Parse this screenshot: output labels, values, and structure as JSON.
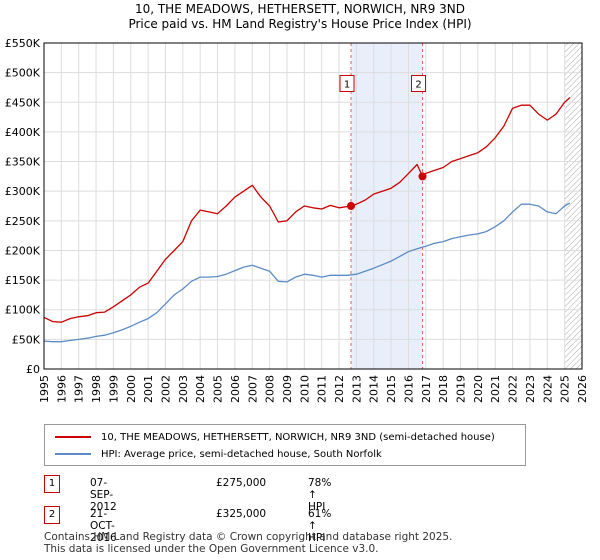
{
  "title_line1": "10, THE MEADOWS, HETHERSETT, NORWICH, NR9 3ND",
  "title_line2": "Price paid vs. HM Land Registry's House Price Index (HPI)",
  "chart_data": {
    "type": "line",
    "title": "Price paid vs. HM Land Registry's House Price Index (HPI)",
    "xlim": [
      1995,
      2026
    ],
    "ylim": [
      0,
      550000
    ],
    "y_ticks": [
      0,
      50000,
      100000,
      150000,
      200000,
      250000,
      300000,
      350000,
      400000,
      450000,
      500000,
      550000
    ],
    "y_tick_labels": [
      "£0",
      "£50K",
      "£100K",
      "£150K",
      "£200K",
      "£250K",
      "£300K",
      "£350K",
      "£400K",
      "£450K",
      "£500K",
      "£550K"
    ],
    "x_ticks": [
      1995,
      1996,
      1997,
      1998,
      1999,
      2000,
      2001,
      2002,
      2003,
      2004,
      2005,
      2006,
      2007,
      2008,
      2009,
      2010,
      2011,
      2012,
      2013,
      2014,
      2015,
      2016,
      2017,
      2018,
      2019,
      2020,
      2021,
      2022,
      2023,
      2024,
      2025,
      2026
    ],
    "x_tick_labels": [
      "1995",
      "1996",
      "1997",
      "1998",
      "1999",
      "2000",
      "2001",
      "2002",
      "2003",
      "2004",
      "2005",
      "2006",
      "2007",
      "2008",
      "2009",
      "2010",
      "2011",
      "2012",
      "2013",
      "2014",
      "2015",
      "2016",
      "2017",
      "2018",
      "2019",
      "2020",
      "2021",
      "2022",
      "2023",
      "2024",
      "2025",
      "2026"
    ],
    "grid": true,
    "shaded_period": [
      2012.69,
      2016.81
    ],
    "forecast_hatch_from": 2025.0,
    "series": [
      {
        "name": "10, THE MEADOWS, HETHERSETT, NORWICH, NR9 3ND (semi-detached house)",
        "color": "#cc0000",
        "x": [
          1995.0,
          1995.5,
          1996.0,
          1996.5,
          1997.0,
          1997.5,
          1998.0,
          1998.5,
          1999.0,
          1999.5,
          2000.0,
          2000.5,
          2001.0,
          2001.5,
          2002.0,
          2002.5,
          2003.0,
          2003.5,
          2004.0,
          2004.5,
          2005.0,
          2005.5,
          2006.0,
          2006.5,
          2007.0,
          2007.5,
          2008.0,
          2008.5,
          2009.0,
          2009.5,
          2010.0,
          2010.5,
          2011.0,
          2011.5,
          2012.0,
          2012.69,
          2013.0,
          2013.5,
          2014.0,
          2014.5,
          2015.0,
          2015.5,
          2016.0,
          2016.5,
          2016.81,
          2017.0,
          2017.5,
          2018.0,
          2018.5,
          2019.0,
          2019.5,
          2020.0,
          2020.5,
          2021.0,
          2021.5,
          2022.0,
          2022.5,
          2023.0,
          2023.5,
          2024.0,
          2024.5,
          2025.0,
          2025.3
        ],
        "values": [
          87000,
          80000,
          79000,
          85000,
          88000,
          90000,
          95000,
          96000,
          105000,
          115000,
          125000,
          138000,
          145000,
          165000,
          185000,
          200000,
          215000,
          250000,
          268000,
          265000,
          262000,
          275000,
          290000,
          300000,
          310000,
          290000,
          275000,
          248000,
          250000,
          265000,
          275000,
          272000,
          270000,
          276000,
          272000,
          275000,
          278000,
          285000,
          295000,
          300000,
          305000,
          315000,
          330000,
          345000,
          325000,
          330000,
          335000,
          340000,
          350000,
          355000,
          360000,
          365000,
          375000,
          390000,
          410000,
          440000,
          445000,
          445000,
          430000,
          420000,
          430000,
          450000,
          458000
        ]
      },
      {
        "name": "HPI: Average price, semi-detached house, South Norfolk",
        "color": "#5b8cc7",
        "x": [
          1995.0,
          1995.5,
          1996.0,
          1996.5,
          1997.0,
          1997.5,
          1998.0,
          1998.5,
          1999.0,
          1999.5,
          2000.0,
          2000.5,
          2001.0,
          2001.5,
          2002.0,
          2002.5,
          2003.0,
          2003.5,
          2004.0,
          2004.5,
          2005.0,
          2005.5,
          2006.0,
          2006.5,
          2007.0,
          2007.5,
          2008.0,
          2008.5,
          2009.0,
          2009.5,
          2010.0,
          2010.5,
          2011.0,
          2011.5,
          2012.0,
          2012.5,
          2013.0,
          2013.5,
          2014.0,
          2014.5,
          2015.0,
          2015.5,
          2016.0,
          2016.5,
          2017.0,
          2017.5,
          2018.0,
          2018.5,
          2019.0,
          2019.5,
          2020.0,
          2020.5,
          2021.0,
          2021.5,
          2022.0,
          2022.5,
          2023.0,
          2023.5,
          2024.0,
          2024.5,
          2025.0,
          2025.3
        ],
        "values": [
          47000,
          46000,
          46000,
          48000,
          50000,
          52000,
          55000,
          57000,
          61000,
          66000,
          72000,
          79000,
          85000,
          95000,
          110000,
          125000,
          135000,
          148000,
          155000,
          155000,
          156000,
          160000,
          166000,
          172000,
          175000,
          170000,
          165000,
          148000,
          147000,
          155000,
          160000,
          158000,
          155000,
          158000,
          158000,
          158000,
          160000,
          165000,
          170000,
          176000,
          182000,
          190000,
          198000,
          203000,
          207000,
          212000,
          215000,
          220000,
          223000,
          226000,
          228000,
          232000,
          240000,
          250000,
          265000,
          278000,
          278000,
          275000,
          265000,
          262000,
          275000,
          280000
        ]
      }
    ],
    "sales": [
      {
        "id": "1",
        "x": 2012.69,
        "value": 275000
      },
      {
        "id": "2",
        "x": 2016.81,
        "value": 325000
      }
    ]
  },
  "legend": {
    "items": [
      {
        "label": "10, THE MEADOWS, HETHERSETT, NORWICH, NR9 3ND (semi-detached house)",
        "color": "#cc0000"
      },
      {
        "label": "HPI: Average price, semi-detached house, South Norfolk",
        "color": "#5b8cc7"
      }
    ]
  },
  "sales_table": [
    {
      "num": "1",
      "date": "07-SEP-2012",
      "price": "£275,000",
      "hpi": "78% ↑ HPI"
    },
    {
      "num": "2",
      "date": "21-OCT-2016",
      "price": "£325,000",
      "hpi": "61% ↑ HPI"
    }
  ],
  "footer": {
    "line1": "Contains HM Land Registry data © Crown copyright and database right 2025.",
    "line2": "This data is licensed under the Open Government Licence v3.0."
  }
}
